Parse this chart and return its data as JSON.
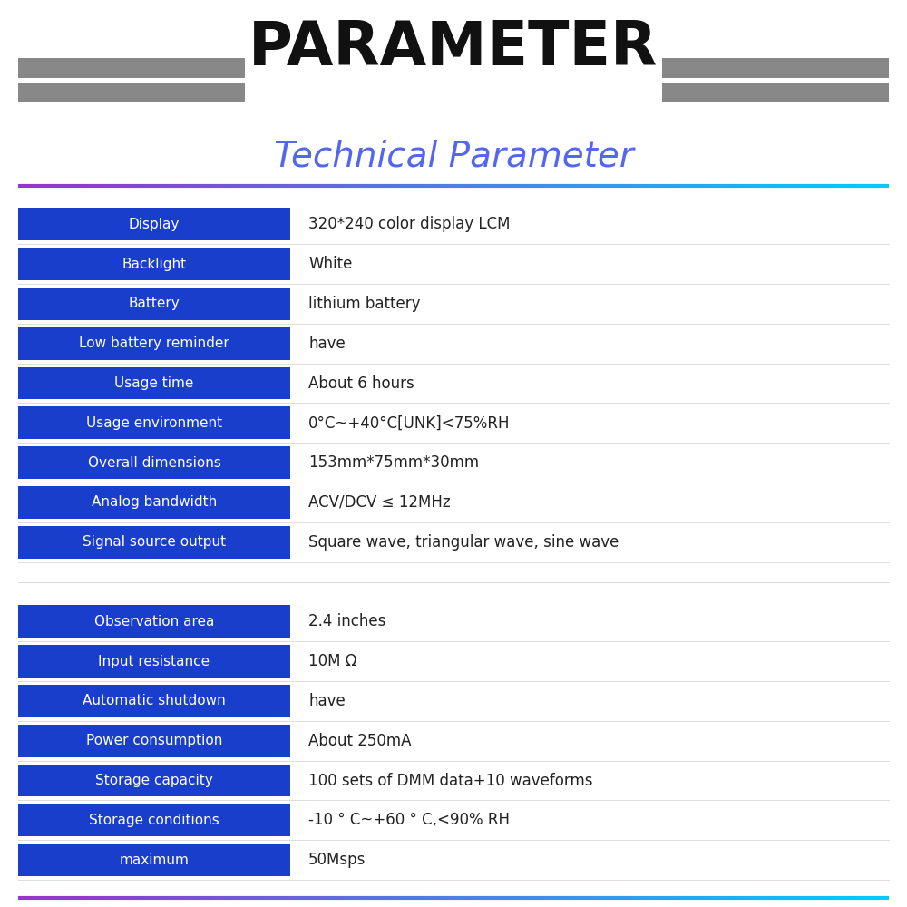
{
  "title": "PARAMETER",
  "subtitle": "Technical Parameter",
  "subtitle_color_left": "#6633ff",
  "subtitle_color_right": "#00aaff",
  "title_color": "#111111",
  "bg_color": "#ffffff",
  "header_bar_color": "#888888",
  "blue_bar_color": "#1a3ecc",
  "row_label_text_color": "#ffffff",
  "value_text_color": "#222222",
  "divider_color_left": "#9933cc",
  "divider_color_right": "#00ccff",
  "rows": [
    {
      "label": "Display",
      "value": "320*240 color display LCM"
    },
    {
      "label": "Backlight",
      "value": "White"
    },
    {
      "label": "Battery",
      "value": "lithium battery"
    },
    {
      "label": "Low battery reminder",
      "value": "have"
    },
    {
      "label": "Usage time",
      "value": "About 6 hours"
    },
    {
      "label": "Usage environment",
      "value": "0°C~+40°C[UNK]<75%RH"
    },
    {
      "label": "Overall dimensions",
      "value": "153mm*75mm*30mm"
    },
    {
      "label": "Analog bandwidth",
      "value": "ACV/DCV ≤ 12MHz"
    },
    {
      "label": "Signal source output",
      "value": "Square wave, triangular wave, sine wave"
    },
    {
      "label": "",
      "value": ""
    },
    {
      "label": "Observation area",
      "value": "2.4 inches"
    },
    {
      "label": "Input resistance",
      "value": "10M Ω"
    },
    {
      "label": "Automatic shutdown",
      "value": "have"
    },
    {
      "label": "Power consumption",
      "value": "About 250mA"
    },
    {
      "label": "Storage capacity",
      "value": "100 sets of DMM data+10 waveforms"
    },
    {
      "label": "Storage conditions",
      "value": "-10 ° C~+60 ° C,<90% RH"
    },
    {
      "label": "maximum",
      "value": "50Msps"
    }
  ]
}
